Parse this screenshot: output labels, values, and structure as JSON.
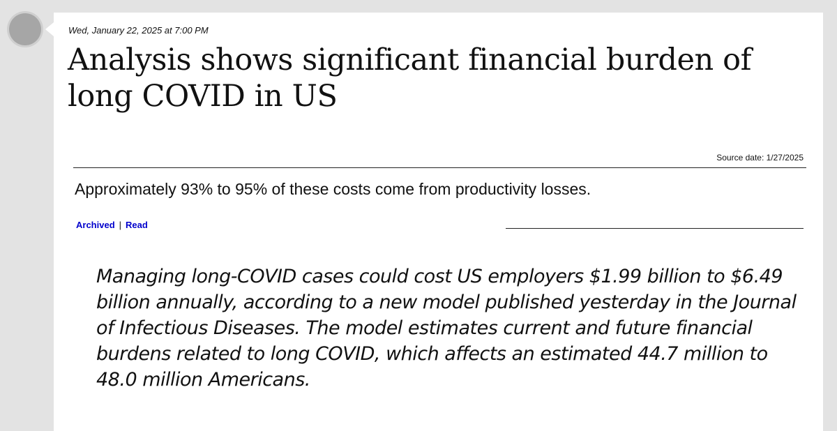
{
  "post": {
    "timestamp": "Wed, January 22, 2025 at 7:00 PM",
    "headline": "Analysis shows significant financial burden of long COVID in US",
    "source_date": "Source date: 1/27/2025",
    "summary": "Approximately 93% to 95% of these costs come from productivity losses.",
    "links": {
      "archived": "Archived",
      "separator": "|",
      "read": "Read"
    },
    "body": "Managing long-COVID cases could cost US employers $1.99 billion to $6.49 billion annually, according to a new model published yesterday in the Journal of Infectious Diseases. The model estimates current and future financial burdens related to long COVID, which affects an estimated 44.7 million to 48.0 million Americans."
  }
}
